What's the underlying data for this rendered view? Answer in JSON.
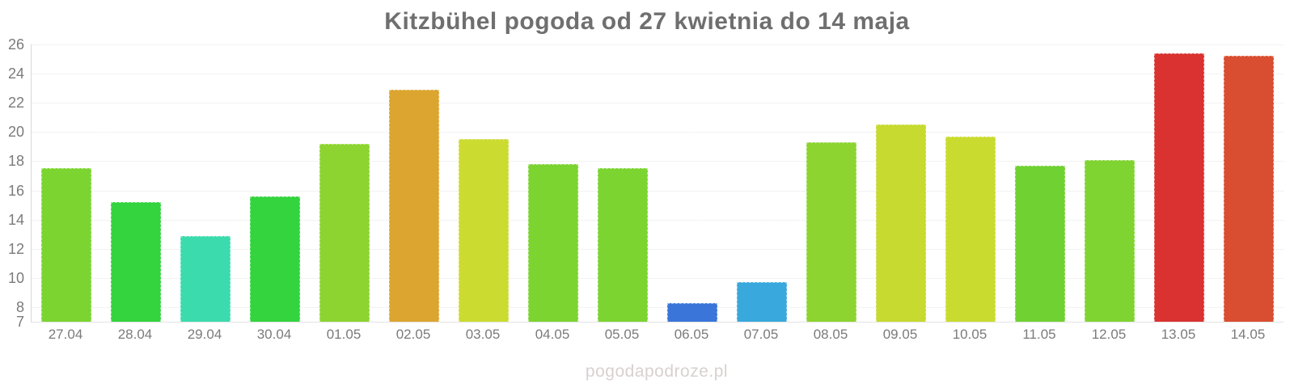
{
  "chart_data": {
    "type": "bar",
    "title": "Kitzbühel pogoda od 27 kwietnia do 14 maja",
    "categories": [
      "27.04",
      "28.04",
      "29.04",
      "30.04",
      "01.05",
      "02.05",
      "03.05",
      "04.05",
      "05.05",
      "06.05",
      "07.05",
      "08.05",
      "09.05",
      "10.05",
      "11.05",
      "12.05",
      "13.05",
      "14.05"
    ],
    "values": [
      17.5,
      15.2,
      12.9,
      15.6,
      19.2,
      22.9,
      19.5,
      17.8,
      17.5,
      8.3,
      9.7,
      19.3,
      20.5,
      19.7,
      17.7,
      18.1,
      25.4,
      25.2
    ],
    "bar_colors": [
      "#7cd431",
      "#33d43e",
      "#3cdbad",
      "#33d43e",
      "#8dd431",
      "#dca52f",
      "#ccdb30",
      "#7cd431",
      "#7cd431",
      "#3a75d9",
      "#39a8dc",
      "#8dd431",
      "#c6da2f",
      "#cadb30",
      "#70d133",
      "#80d432",
      "#d93230",
      "#d94e30"
    ],
    "ylim": [
      7,
      26
    ],
    "yticks": [
      7,
      8,
      10,
      12,
      14,
      16,
      18,
      20,
      22,
      24,
      26
    ],
    "xlabel": "",
    "ylabel": "",
    "grid": "horizontal-dotted",
    "legend": "none",
    "watermark": "pogodapodroze.pl"
  },
  "colors": {
    "title": "#6f6f6f",
    "axis_label": "#7b7b7b",
    "gridline": "#e6e6e6",
    "axis_line": "#d9d9d9",
    "watermark": "#d9d0d0"
  }
}
